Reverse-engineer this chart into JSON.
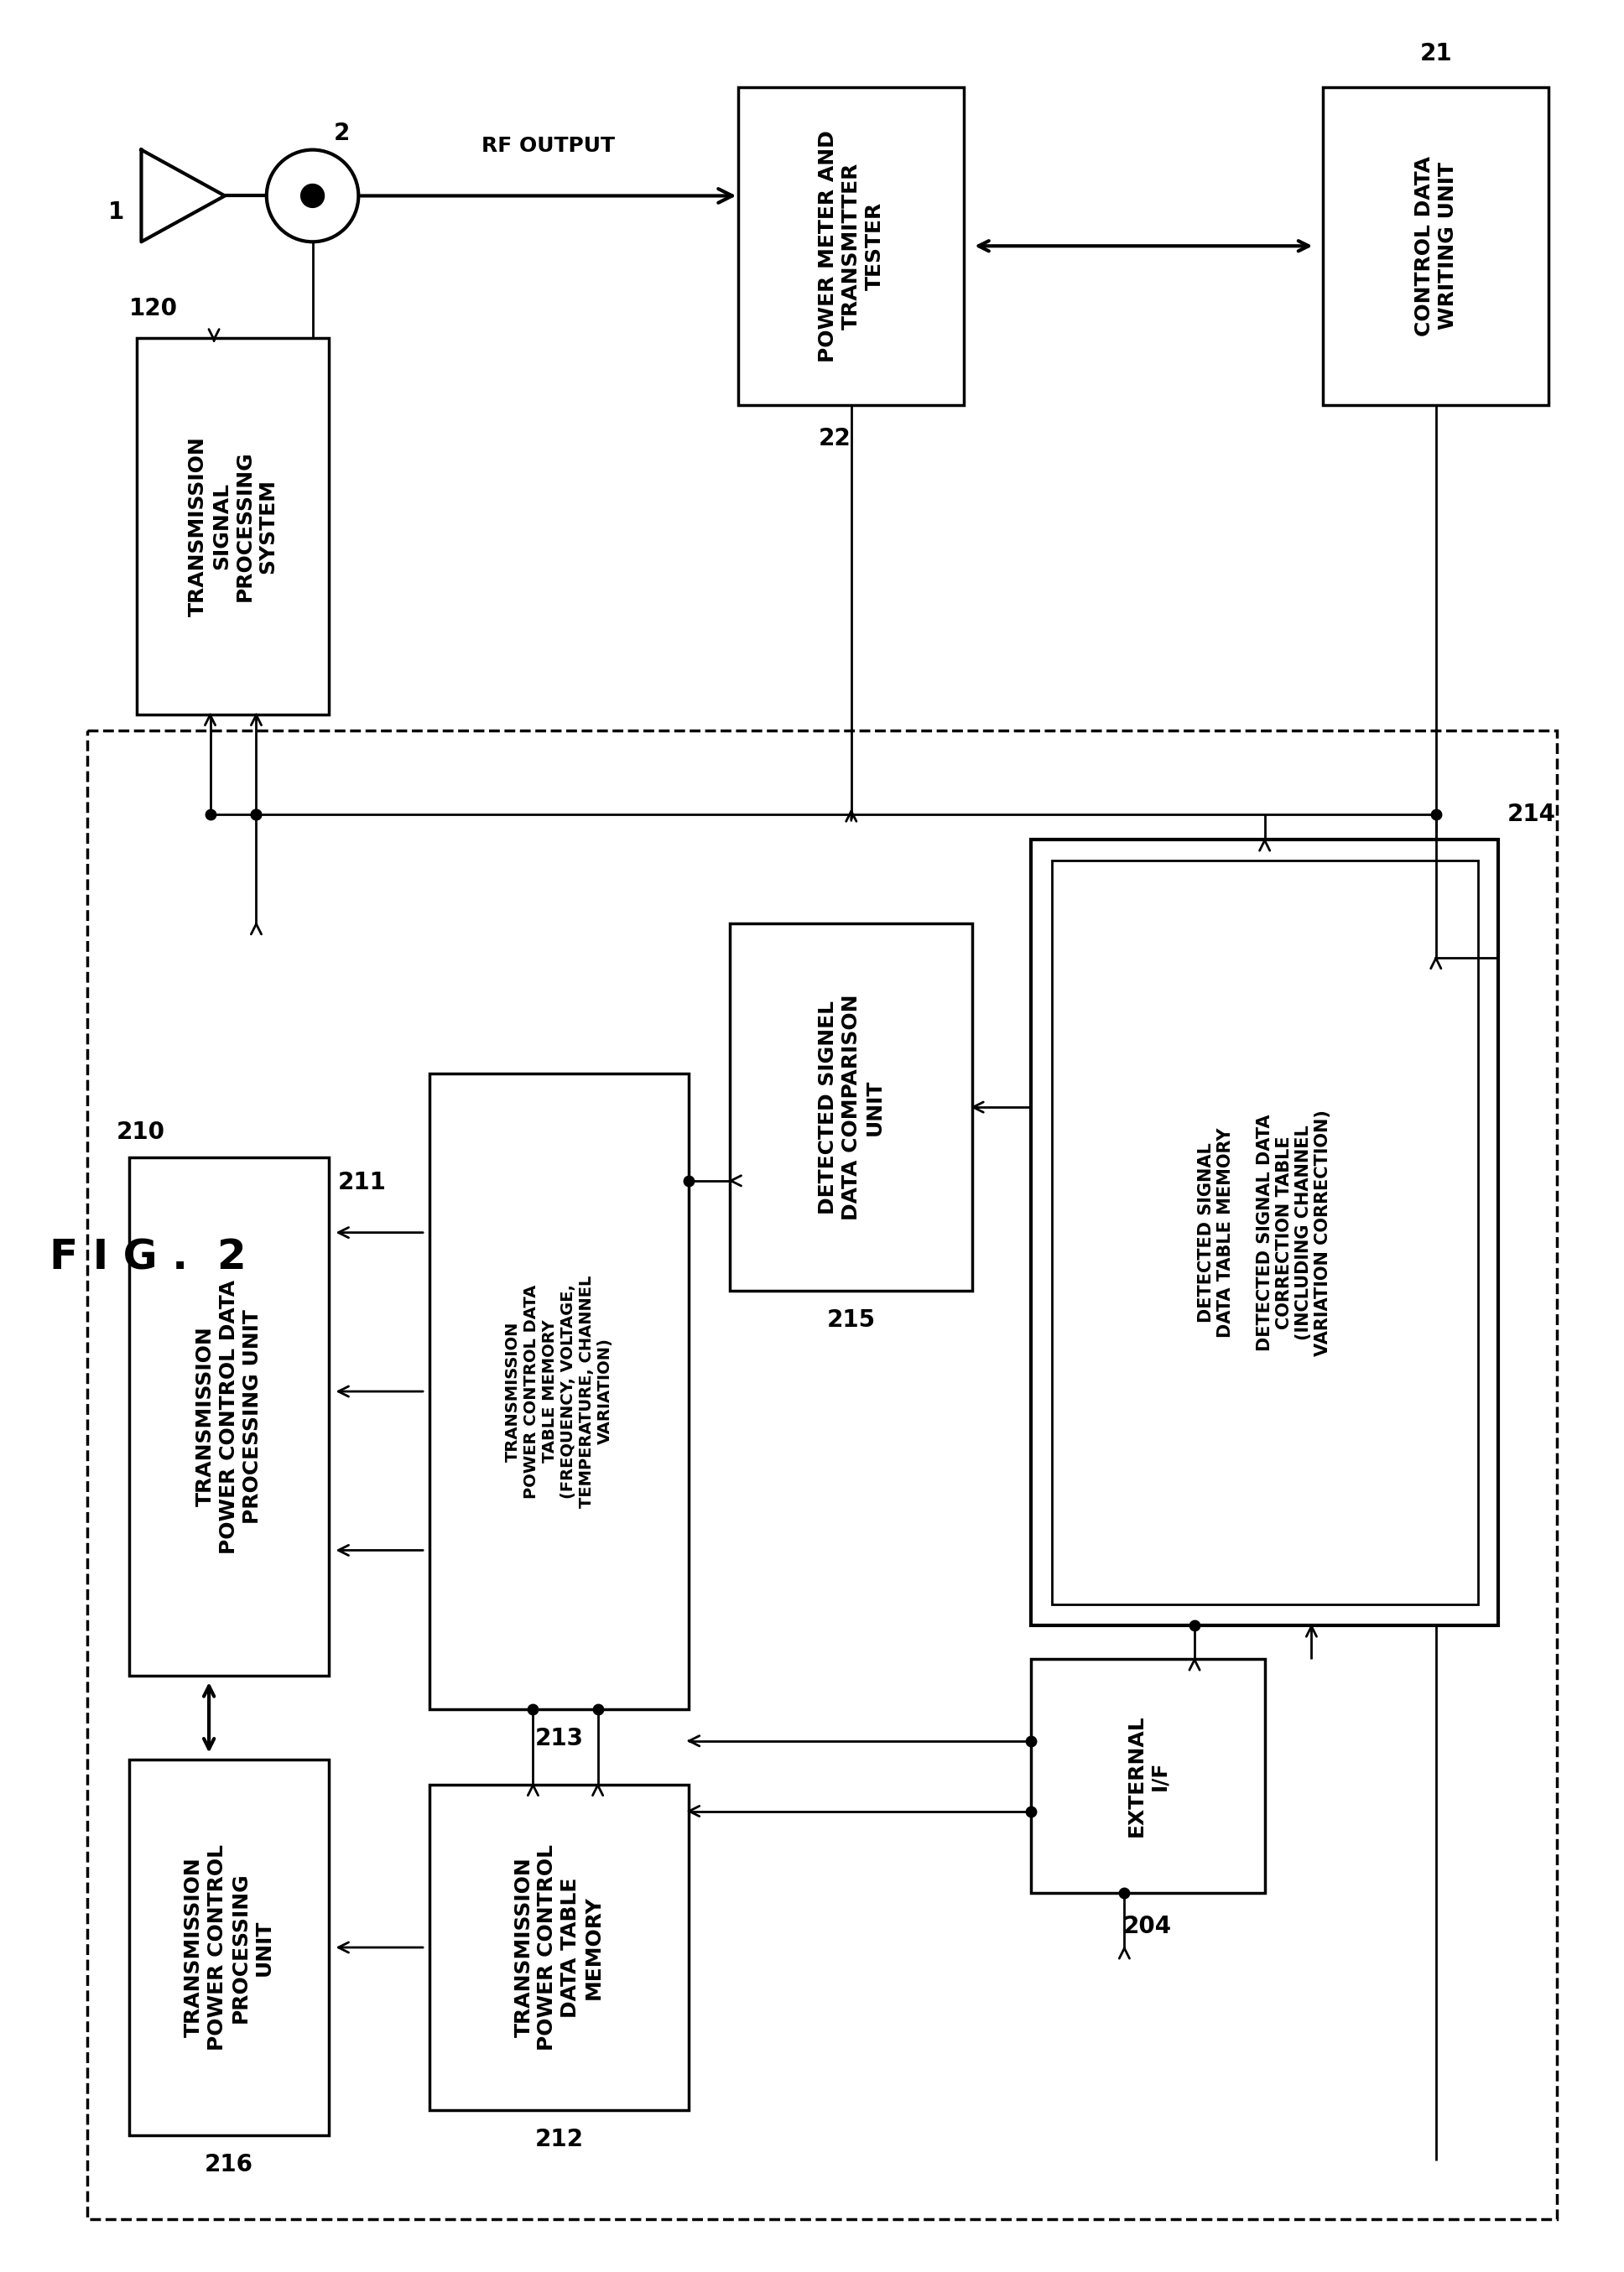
{
  "bg_color": "#ffffff",
  "fig_label": "F I G .  2",
  "components": {
    "tx_signal_sys": {
      "label": "TRANSMISSION\nSIGNAL\nPROCESSING\nSYSTEM",
      "id": "120",
      "id_pos": "top_left"
    },
    "power_meter": {
      "label": "POWER METER AND\nTRANSMITTER\nTESTER",
      "id": "22",
      "id_pos": "bottom"
    },
    "ctrl_write": {
      "label": "CONTROL DATA\nWRITING UNIT",
      "id": "21",
      "id_pos": "top_right"
    },
    "tx_pwr_data_proc": {
      "label": "TRANSMISSION\nPOWER CONTROL DATA\nPROCESSING UNIT",
      "id": "210",
      "id_pos": "top_left"
    },
    "tx_pwr_ctrl_table": {
      "label": "TRANSMISSION\nPOWER CONTROL DATA\nTABLE MEMORY\n(FREQUENCY, VOLTAGE,\nTEMPERATURE, CHANNEL\nVARIATION)",
      "id": "213",
      "id_pos": "right"
    },
    "tx_pwr_ctrl_proc": {
      "label": "TRANSMISSION\nPOWER CONTROL\nPROCESSING\nUNIT",
      "id": "216",
      "id_pos": "bottom"
    },
    "tx_pwr_data_table": {
      "label": "TRANSMISSION\nPOWER CONTROL\nDATA TABLE\nMEMORY",
      "id": "212",
      "id_pos": "bottom"
    },
    "detect_sig_comp": {
      "label": "DETECTED SIGNEL\nDATA COMPARISON\nUNIT",
      "id": "215",
      "id_pos": "bottom"
    },
    "detect_sig_outer": {
      "label": "",
      "id": "214",
      "id_pos": "top"
    },
    "detect_sig_inner": {
      "label": "DETECTED SIGNAL\nDATA TABLE MEMORY\n \nDETECTED SIGNAL DATA\nCORRECTION TABLE\n(INCLUDING CHANNEL\nVARIATION CORRECTION)",
      "id": "",
      "id_pos": ""
    },
    "external_if": {
      "label": "EXTERNAL\nI/F",
      "id": "204",
      "id_pos": "bottom"
    }
  }
}
